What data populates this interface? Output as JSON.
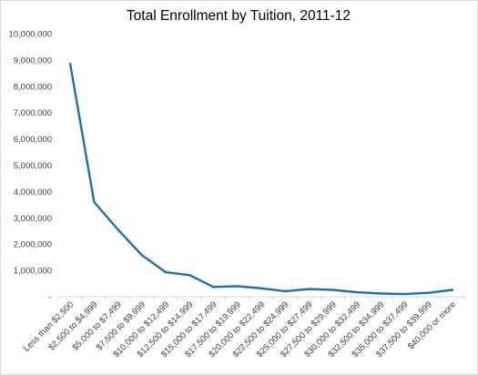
{
  "chart_data": {
    "type": "line",
    "title": "Total Enrollment by Tuition, 2011-12",
    "xlabel": "",
    "ylabel": "",
    "categories": [
      "Less than $2,500",
      "$2,500 to $4,999",
      "$5,000 to $7,499",
      "$7,500 to $9,999",
      "$10,000 to $12,499",
      "$12,500 to $14,999",
      "$15,000 to $17,499",
      "$17,500 to $19,999",
      "$20,000 to $22,499",
      "$22,500 to $24,999",
      "$25,000 to $27,499",
      "$27,500 to $29,999",
      "$30,000 to $32,499",
      "$32,500 to $34,999",
      "$35,000 to $37,499",
      "$37,500 to $39,999",
      "$40,000 or more"
    ],
    "values": [
      8850000,
      3600000,
      2550000,
      1580000,
      930000,
      820000,
      370000,
      400000,
      320000,
      210000,
      290000,
      260000,
      170000,
      120000,
      100000,
      150000,
      260000
    ],
    "ylim": [
      0,
      10000000
    ],
    "yticks": [
      {
        "value": 0,
        "label": "-"
      },
      {
        "value": 1000000,
        "label": "1,000,000"
      },
      {
        "value": 2000000,
        "label": "2,000,000"
      },
      {
        "value": 3000000,
        "label": "3,000,000"
      },
      {
        "value": 4000000,
        "label": "4,000,000"
      },
      {
        "value": 5000000,
        "label": "5,000,000"
      },
      {
        "value": 6000000,
        "label": "6,000,000"
      },
      {
        "value": 7000000,
        "label": "7,000,000"
      },
      {
        "value": 8000000,
        "label": "8,000,000"
      },
      {
        "value": 9000000,
        "label": "9,000,000"
      },
      {
        "value": 10000000,
        "label": "10,000,000"
      }
    ],
    "grid": false,
    "legend": "none",
    "line_color": "#1f6eb5",
    "axis_color": "#d9d9d9"
  }
}
